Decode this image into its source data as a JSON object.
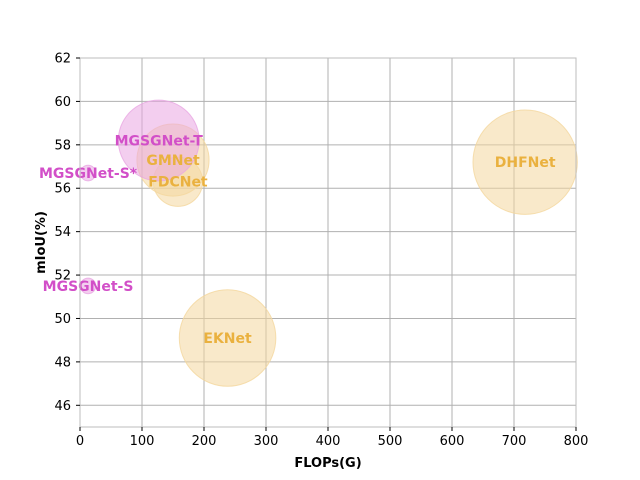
{
  "chart_data": {
    "type": "scatter",
    "title": "",
    "xlabel": "FLOPs(G)",
    "ylabel": "mIoU(%)",
    "xlim": [
      0,
      800
    ],
    "ylim": [
      45,
      62
    ],
    "x_ticks": [
      "0",
      "100",
      "200",
      "300",
      "400",
      "500",
      "600",
      "700",
      "800"
    ],
    "y_ticks": [
      "46",
      "48",
      "50",
      "52",
      "54",
      "56",
      "58",
      "60",
      "62"
    ],
    "grid": true,
    "colors": {
      "mgsg_fill": "#e9a6e2",
      "mgsg_text": "#d24fc8",
      "other_fill": "#f4d79e",
      "other_text": "#eab13f"
    },
    "points": [
      {
        "label": "DHFNet",
        "x": 718,
        "y": 57.2,
        "size": 0.9,
        "group": "other"
      },
      {
        "label": "FDCNet",
        "x": 158,
        "y": 56.3,
        "size": 0.2,
        "group": "other"
      },
      {
        "label": "GMNet",
        "x": 150,
        "y": 57.3,
        "size": 0.43,
        "group": "other"
      },
      {
        "label": "EKNet",
        "x": 238,
        "y": 49.1,
        "size": 0.77,
        "group": "other"
      },
      {
        "label": "MGSGNet-T",
        "x": 127,
        "y": 58.2,
        "size": 0.54,
        "group": "mgsg"
      },
      {
        "label": "MGSGNet-S*",
        "x": 13,
        "y": 56.7,
        "size": 0.02,
        "group": "mgsg"
      },
      {
        "label": "MGSGNet-S",
        "x": 13,
        "y": 51.5,
        "size": 0.02,
        "group": "mgsg"
      }
    ]
  }
}
